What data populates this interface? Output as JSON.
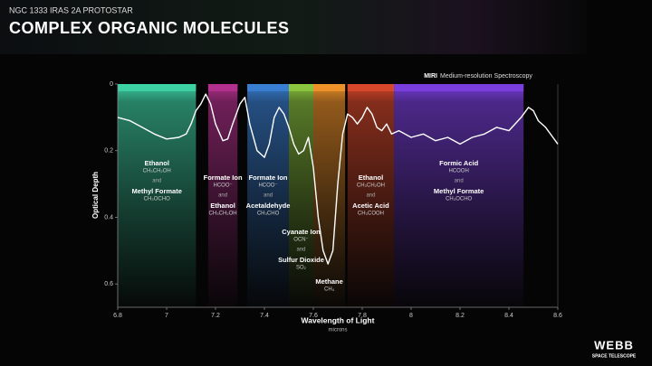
{
  "chart_data": {
    "type": "spectrum",
    "supertitle": "NGC 1333 IRAS 2A PROTOSTAR",
    "title": "COMPLEX ORGANIC MOLECULES",
    "instrument": "MIRI",
    "instrument_mode": "Medium-resolution Spectroscopy",
    "y_label": "Optical Depth",
    "x_label": "Wavelength of Light",
    "x_unit": "microns",
    "logo": "WEBB",
    "logo_sub": "SPACE TELESCOPE",
    "y_inverted": true,
    "xlim": [
      6.8,
      8.6
    ],
    "ylim": [
      0,
      0.67
    ],
    "xticks": [
      6.8,
      7.0,
      7.2,
      7.4,
      7.6,
      7.8,
      8.0,
      8.2,
      8.4,
      8.6
    ],
    "yticks": [
      0,
      0.2,
      0.4,
      0.6
    ],
    "line_color": "#ffffff",
    "x": [
      6.8,
      6.85,
      6.9,
      6.95,
      7.0,
      7.05,
      7.08,
      7.1,
      7.12,
      7.14,
      7.16,
      7.18,
      7.2,
      7.23,
      7.25,
      7.27,
      7.3,
      7.32,
      7.34,
      7.37,
      7.4,
      7.42,
      7.44,
      7.46,
      7.48,
      7.5,
      7.52,
      7.54,
      7.56,
      7.58,
      7.6,
      7.62,
      7.64,
      7.66,
      7.68,
      7.7,
      7.72,
      7.74,
      7.76,
      7.78,
      7.8,
      7.82,
      7.84,
      7.86,
      7.88,
      7.9,
      7.92,
      7.95,
      8.0,
      8.05,
      8.1,
      8.15,
      8.2,
      8.25,
      8.3,
      8.35,
      8.4,
      8.45,
      8.48,
      8.5,
      8.52,
      8.55,
      8.58,
      8.6
    ],
    "values": [
      0.1,
      0.11,
      0.13,
      0.15,
      0.165,
      0.16,
      0.15,
      0.12,
      0.08,
      0.06,
      0.03,
      0.06,
      0.12,
      0.17,
      0.165,
      0.12,
      0.06,
      0.04,
      0.12,
      0.2,
      0.22,
      0.18,
      0.1,
      0.07,
      0.09,
      0.13,
      0.18,
      0.21,
      0.2,
      0.16,
      0.25,
      0.4,
      0.5,
      0.54,
      0.5,
      0.3,
      0.15,
      0.09,
      0.1,
      0.12,
      0.1,
      0.07,
      0.09,
      0.13,
      0.14,
      0.12,
      0.15,
      0.14,
      0.16,
      0.15,
      0.17,
      0.16,
      0.18,
      0.16,
      0.15,
      0.13,
      0.14,
      0.1,
      0.07,
      0.08,
      0.11,
      0.13,
      0.16,
      0.18
    ],
    "joiner": "and",
    "bands": [
      {
        "x": [
          6.8,
          7.12
        ],
        "color": "#3ed3a4",
        "molecules": [
          {
            "name": "Ethanol",
            "formula": "CH₃CH₂OH"
          },
          {
            "name": "Methyl Formate",
            "formula": "CH₃OCHO"
          }
        ]
      },
      {
        "x": [
          7.17,
          7.29
        ],
        "color": "#b5318f",
        "molecules": [
          {
            "name": "Formate Ion",
            "formula": "HCOO⁻"
          },
          {
            "name": "Ethanol",
            "formula": "CH₃CH₂OH"
          }
        ]
      },
      {
        "x": [
          7.33,
          7.5
        ],
        "color": "#3a80d4",
        "molecules": [
          {
            "name": "Formate Ion",
            "formula": "HCOO⁻"
          },
          {
            "name": "Acetaldehyde",
            "formula": "CH₃CHO"
          }
        ]
      },
      {
        "x": [
          7.5,
          7.6
        ],
        "color": "#8dc63f",
        "molecules": [
          {
            "name": "Cyanate Ion",
            "formula": "OCN⁻"
          },
          {
            "name": "Sulfur Dioxide",
            "formula": "SO₂"
          }
        ]
      },
      {
        "x": [
          7.6,
          7.73
        ],
        "color": "#f0922a",
        "molecules": [
          {
            "name": "Methane",
            "formula": "CH₄"
          }
        ]
      },
      {
        "x": [
          7.74,
          7.93
        ],
        "color": "#d9482b",
        "molecules": [
          {
            "name": "Ethanol",
            "formula": "CH₃CH₂OH"
          },
          {
            "name": "Acetic Acid",
            "formula": "CH₃COOH"
          }
        ]
      },
      {
        "x": [
          7.93,
          8.46
        ],
        "color": "#7b3fe0",
        "molecules": [
          {
            "name": "Formic Acid",
            "formula": "HCOOH"
          },
          {
            "name": "Methyl Formate",
            "formula": "CH₃OCHO"
          }
        ]
      }
    ]
  }
}
